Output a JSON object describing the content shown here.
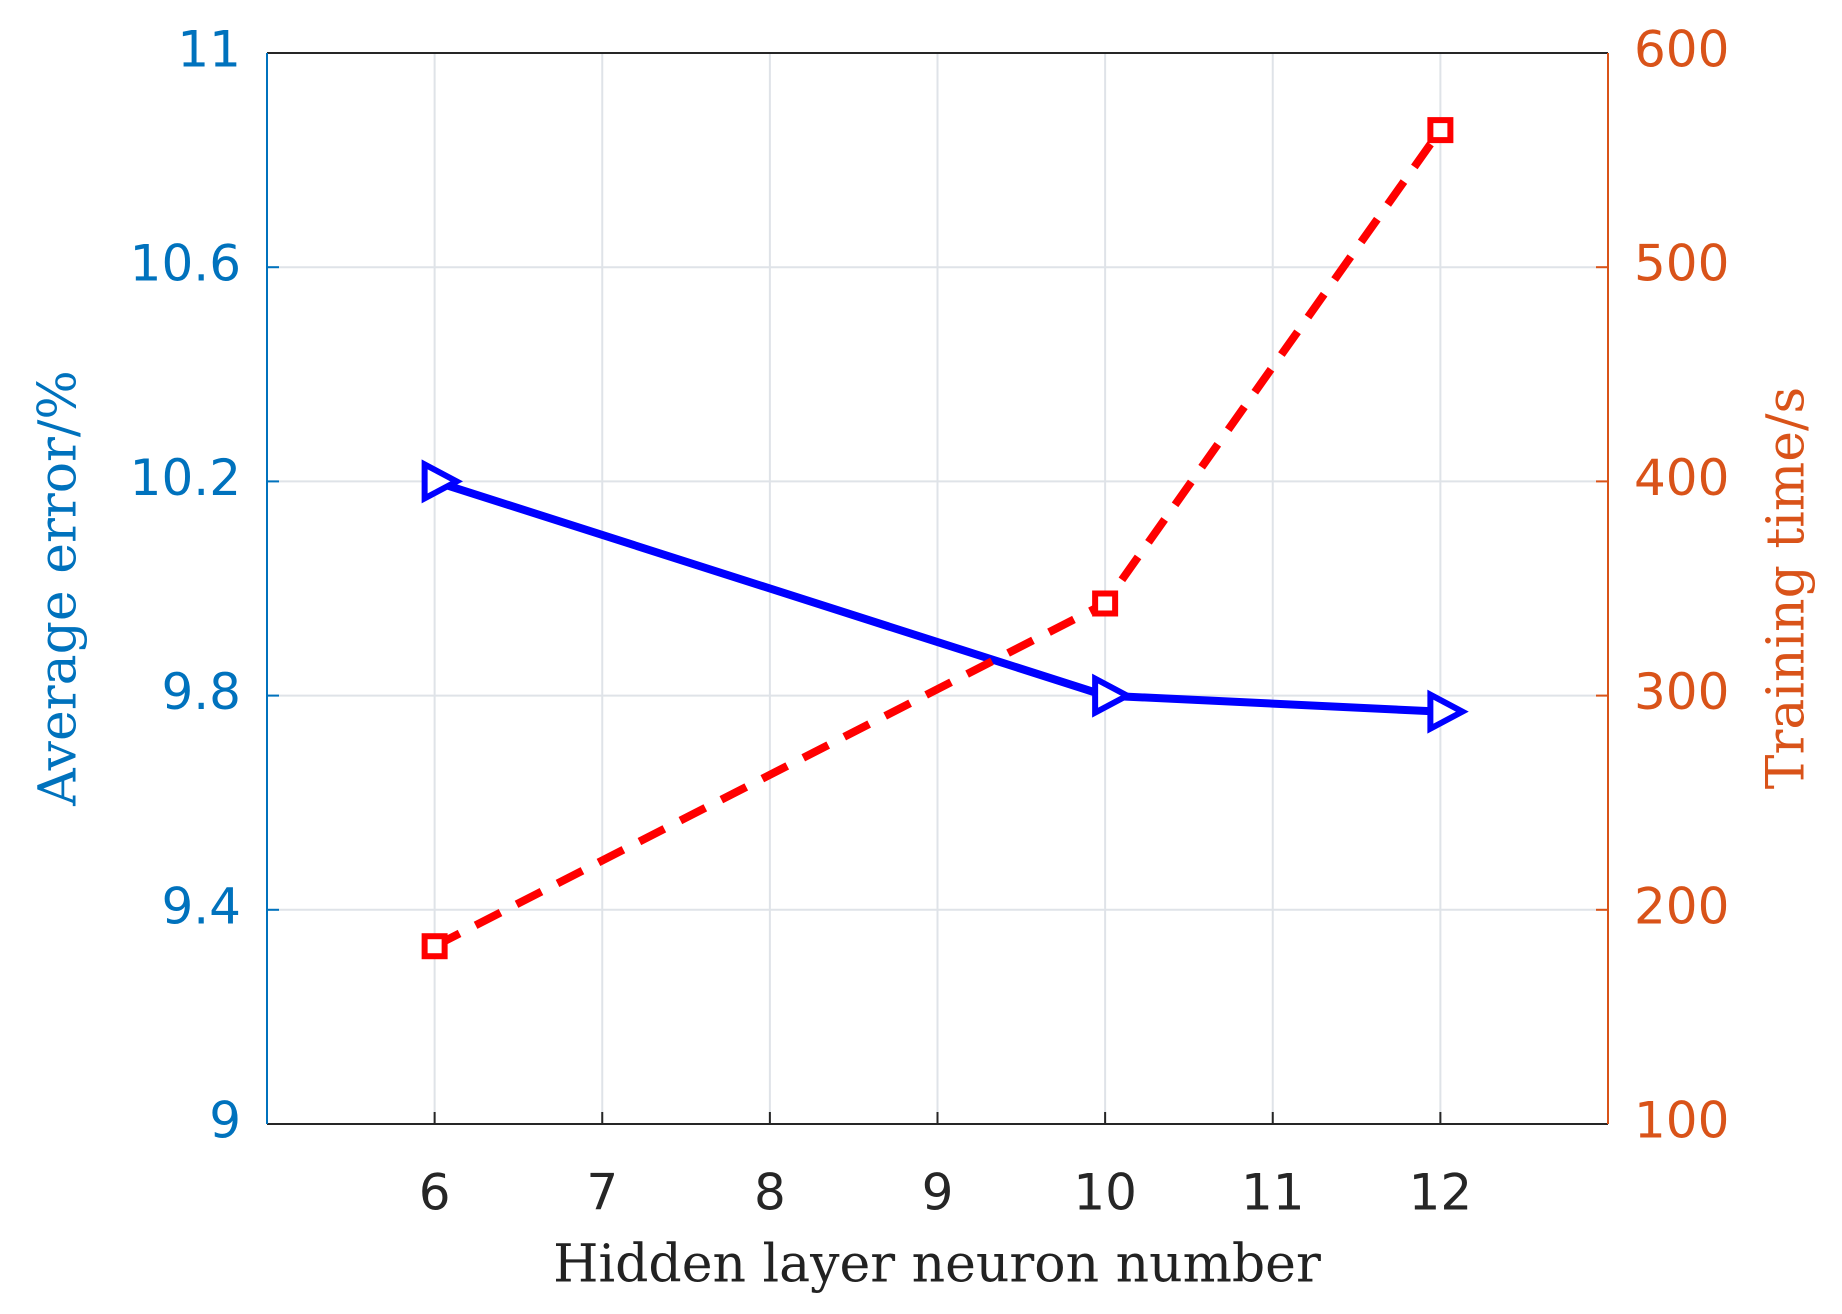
{
  "chart_data": {
    "type": "line",
    "xlabel": "Hidden layer neuron number",
    "ylabel": "Average error/%",
    "y2label": "Training time/s",
    "x": [
      6,
      10,
      12
    ],
    "xlim": [
      5,
      13
    ],
    "xticks": [
      6,
      7,
      8,
      9,
      10,
      11,
      12
    ],
    "ylim": [
      9,
      11
    ],
    "yticks": [
      9,
      9.4,
      9.8,
      10.2,
      10.6,
      11
    ],
    "y2lim": [
      100,
      600
    ],
    "y2ticks": [
      100,
      200,
      300,
      400,
      500,
      600
    ],
    "y_axis_color": "#0072bd",
    "y2_axis_color": "#d95319",
    "grid": true,
    "series": [
      {
        "name": "Average error",
        "color": "#0000ff",
        "line_style": "solid",
        "marker": "triangle-right",
        "values": [
          10.2,
          9.8,
          9.77
        ]
      },
      {
        "name": "Training time",
        "color": "#ff0000",
        "line_style": "dashed",
        "marker": "square",
        "axis": "y2",
        "values": [
          183,
          343,
          564
        ]
      }
    ]
  }
}
